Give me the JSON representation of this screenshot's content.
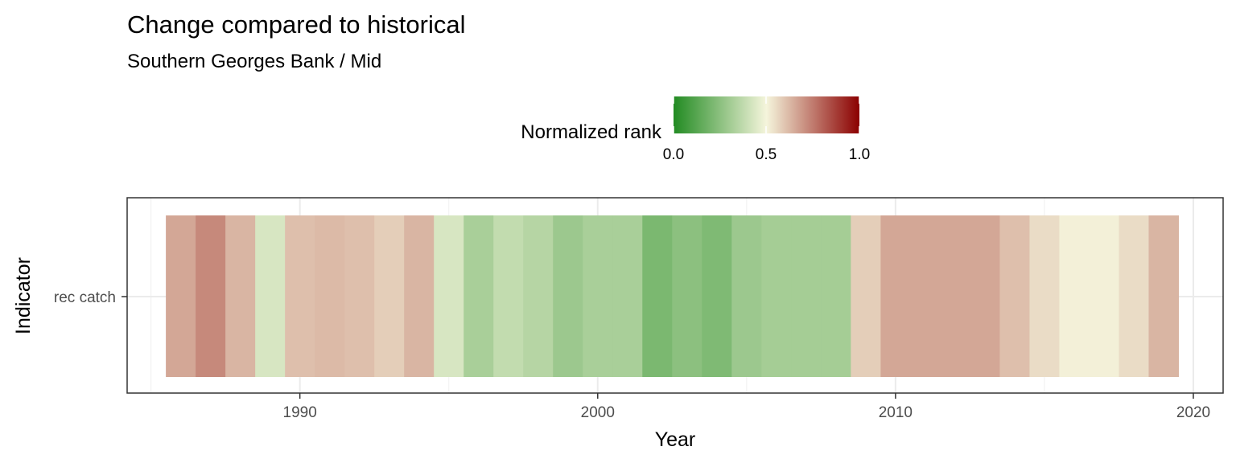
{
  "chart_data": {
    "type": "heatmap",
    "title": "Change compared to historical",
    "subtitle": "Southern Georges Bank / Mid",
    "xlabel": "Year",
    "ylabel": "Indicator",
    "xlim": [
      1984.2,
      2021.0
    ],
    "x_ticks": [
      "1990",
      "2000",
      "2010",
      "2020"
    ],
    "y_categories": [
      "rec catch"
    ],
    "legend": {
      "title": "Normalized rank",
      "position": "top",
      "ticks": [
        "0.0",
        "0.5",
        "1.0"
      ],
      "colors": {
        "low": "#228b22",
        "mid": "#f5f5dc",
        "high": "#8b0000"
      }
    },
    "grid": true,
    "series": [
      {
        "indicator": "rec catch",
        "points": [
          {
            "x": 1986,
            "value": 0.66
          },
          {
            "x": 1987,
            "value": 0.72
          },
          {
            "x": 1988,
            "value": 0.63
          },
          {
            "x": 1989,
            "value": 0.43
          },
          {
            "x": 1990,
            "value": 0.61
          },
          {
            "x": 1991,
            "value": 0.62
          },
          {
            "x": 1992,
            "value": 0.61
          },
          {
            "x": 1993,
            "value": 0.58
          },
          {
            "x": 1994,
            "value": 0.63
          },
          {
            "x": 1995,
            "value": 0.43
          },
          {
            "x": 1996,
            "value": 0.32
          },
          {
            "x": 1997,
            "value": 0.38
          },
          {
            "x": 1998,
            "value": 0.35
          },
          {
            "x": 1999,
            "value": 0.29
          },
          {
            "x": 2000,
            "value": 0.32
          },
          {
            "x": 2001,
            "value": 0.32
          },
          {
            "x": 2002,
            "value": 0.21
          },
          {
            "x": 2003,
            "value": 0.25
          },
          {
            "x": 2004,
            "value": 0.22
          },
          {
            "x": 2005,
            "value": 0.29
          },
          {
            "x": 2006,
            "value": 0.31
          },
          {
            "x": 2007,
            "value": 0.31
          },
          {
            "x": 2008,
            "value": 0.31
          },
          {
            "x": 2009,
            "value": 0.58
          },
          {
            "x": 2010,
            "value": 0.66
          },
          {
            "x": 2011,
            "value": 0.66
          },
          {
            "x": 2012,
            "value": 0.66
          },
          {
            "x": 2013,
            "value": 0.66
          },
          {
            "x": 2014,
            "value": 0.61
          },
          {
            "x": 2015,
            "value": 0.55
          },
          {
            "x": 2016,
            "value": 0.51
          },
          {
            "x": 2017,
            "value": 0.51
          },
          {
            "x": 2018,
            "value": 0.55
          },
          {
            "x": 2019,
            "value": 0.63
          }
        ]
      }
    ]
  }
}
